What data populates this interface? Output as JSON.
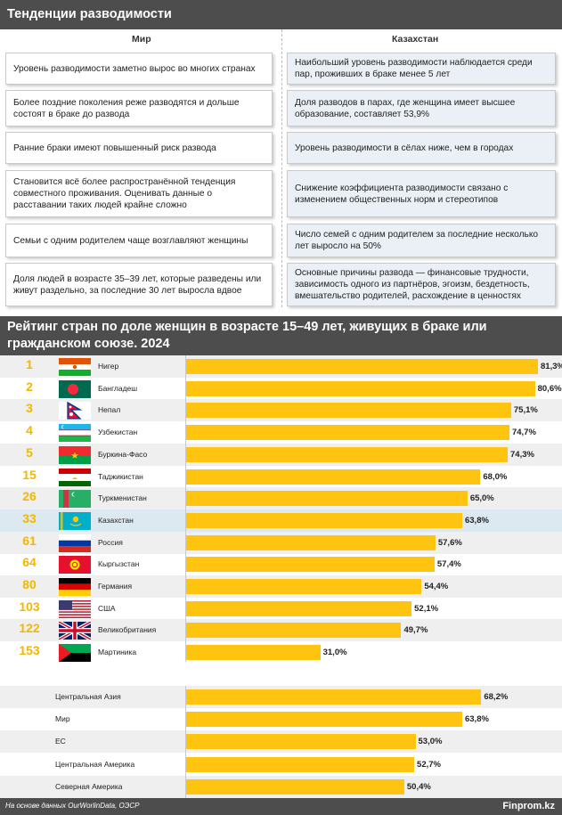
{
  "header": {
    "title": "Тенденции разводимости"
  },
  "columns": {
    "world": "Мир",
    "kazakhstan": "Казахстан"
  },
  "trends": {
    "world": [
      "Уровень разводимости заметно вырос во многих странах",
      "Более поздние поколения реже разводятся и дольше состоят в браке до развода",
      "Ранние браки имеют повышенный риск развода",
      "Становится всё более распространённой тенденция совместного проживания. Оценивать данные о расставании таких людей крайне сложно",
      "Семьи с одним родителем чаще возглавляют женщины",
      "Доля людей в возрасте 35–39 лет, которые разведены или живут раздельно, за последние 30 лет выросла вдвое"
    ],
    "kazakhstan": [
      "Наибольший уровень разводимости наблюдается среди пар, проживших в браке менее 5 лет",
      "Доля разводов в парах, где женщина имеет высшее образование, составляет 53,9%",
      "Уровень разводимости в сёлах ниже, чем в городах",
      "Снижение коэффициента разводимости связано с изменением общественных норм и стереотипов",
      "Число семей с одним родителем за последние несколько лет выросло на 50%",
      "Основные причины развода — финансовые трудности, зависимость одного из партнёров, эгоизм, бездетность, вмешательство родителей, расхождение в ценностях"
    ]
  },
  "chart_data": {
    "type": "bar",
    "title": "Рейтинг стран по доле женщин в возрасте 15–49 лет, живущих в браке или гражданском союзе. 2024",
    "xlim": [
      0,
      85
    ],
    "countries": [
      {
        "rank": "1",
        "name": "Нигер",
        "value": 81.3,
        "label": "81,3%",
        "flag": "niger-flag"
      },
      {
        "rank": "2",
        "name": "Бангладеш",
        "value": 80.6,
        "label": "80,6%",
        "flag": "bangladesh-flag"
      },
      {
        "rank": "3",
        "name": "Непал",
        "value": 75.1,
        "label": "75,1%",
        "flag": "nepal-flag"
      },
      {
        "rank": "4",
        "name": "Узбекистан",
        "value": 74.7,
        "label": "74,7%",
        "flag": "uzbekistan-flag"
      },
      {
        "rank": "5",
        "name": "Буркина-Фасо",
        "value": 74.3,
        "label": "74,3%",
        "flag": "burkina-faso-flag"
      },
      {
        "rank": "15",
        "name": "Таджикистан",
        "value": 68.0,
        "label": "68,0%",
        "flag": "tajikistan-flag"
      },
      {
        "rank": "26",
        "name": "Туркменистан",
        "value": 65.0,
        "label": "65,0%",
        "flag": "turkmenistan-flag"
      },
      {
        "rank": "33",
        "name": "Казахстан",
        "value": 63.8,
        "label": "63,8%",
        "flag": "kazakhstan-flag",
        "highlight": true
      },
      {
        "rank": "61",
        "name": "Россия",
        "value": 57.6,
        "label": "57,6%",
        "flag": "russia-flag"
      },
      {
        "rank": "64",
        "name": "Кыргызстан",
        "value": 57.4,
        "label": "57,4%",
        "flag": "kyrgyzstan-flag"
      },
      {
        "rank": "80",
        "name": "Германия",
        "value": 54.4,
        "label": "54,4%",
        "flag": "germany-flag"
      },
      {
        "rank": "103",
        "name": "США",
        "value": 52.1,
        "label": "52,1%",
        "flag": "usa-flag"
      },
      {
        "rank": "122",
        "name": "Великобритания",
        "value": 49.7,
        "label": "49,7%",
        "flag": "uk-flag"
      },
      {
        "rank": "153",
        "name": "Мартиника",
        "value": 31.0,
        "label": "31,0%",
        "flag": "martinique-flag"
      }
    ],
    "regions": [
      {
        "name": "Центральная Азия",
        "value": 68.2,
        "label": "68,2%"
      },
      {
        "name": "Мир",
        "value": 63.8,
        "label": "63,8%"
      },
      {
        "name": "ЕС",
        "value": 53.0,
        "label": "53,0%"
      },
      {
        "name": "Центральная Америка",
        "value": 52.7,
        "label": "52,7%"
      },
      {
        "name": "Северная Америка",
        "value": 50.4,
        "label": "50,4%"
      }
    ],
    "colors": {
      "bar": "#fec40f",
      "rank": "#f2b700",
      "highlight_row": "#dde9f0"
    }
  },
  "footer": {
    "source": "На основе данных OurWorlinData, ОЭСР",
    "brand": "Finprom.kz"
  }
}
